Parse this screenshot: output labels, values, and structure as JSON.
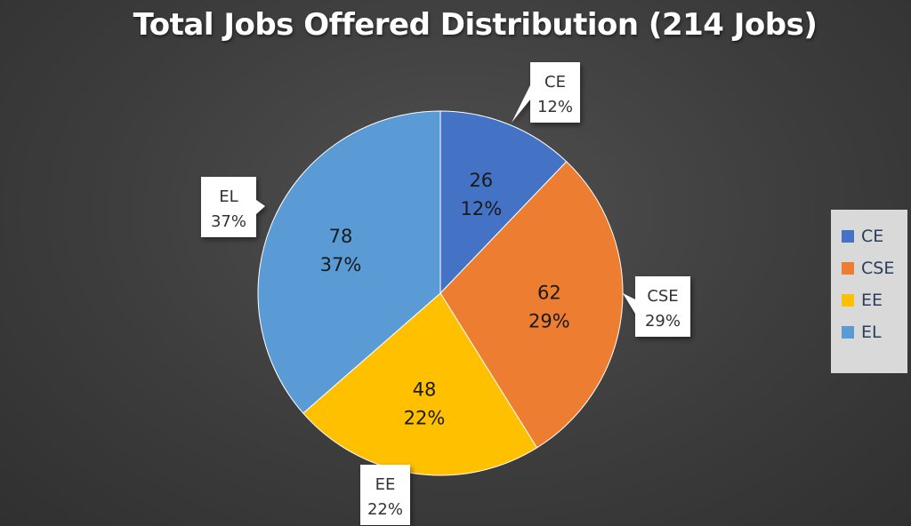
{
  "chart_data": {
    "type": "pie",
    "title": "Total Jobs Offered Distribution (214 Jobs)",
    "slices": [
      {
        "label": "CE",
        "value": 26,
        "percent": "12%",
        "color": "#4472c4"
      },
      {
        "label": "CSE",
        "value": 62,
        "percent": "29%",
        "color": "#ed7d31"
      },
      {
        "label": "EE",
        "value": 48,
        "percent": "22%",
        "color": "#ffc000"
      },
      {
        "label": "EL",
        "value": 78,
        "percent": "37%",
        "color": "#5b9bd5"
      }
    ],
    "start_angle": "12 o'clock",
    "direction": "clockwise",
    "legend_position": "right"
  }
}
